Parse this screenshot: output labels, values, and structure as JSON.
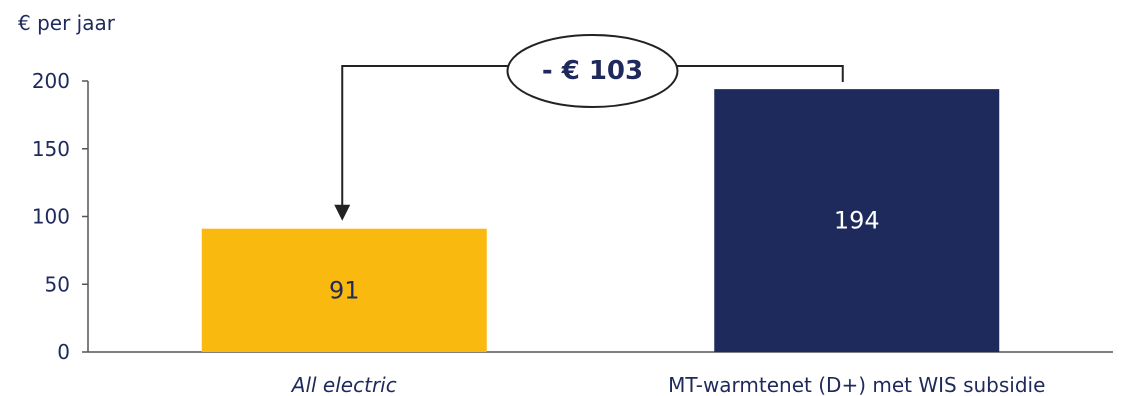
{
  "chart_data": {
    "type": "bar",
    "ylabel": "€ per jaar",
    "ylim": [
      0,
      200
    ],
    "yticks": [
      0,
      50,
      100,
      150,
      200
    ],
    "categories": [
      "All electric",
      "MT-warmtenet (D+) met WIS subsidie"
    ],
    "values": [
      91,
      194
    ],
    "value_labels": [
      "91",
      "194"
    ],
    "colors": [
      "#F9B90F",
      "#1F2A5C"
    ],
    "value_label_colors": [
      "#1f2a5c",
      "#ffffff"
    ],
    "category_italic": [
      true,
      false
    ],
    "annotation": {
      "text": "- € 103",
      "from": "MT-warmtenet (D+) met WIS subsidie",
      "to": "All electric"
    }
  }
}
